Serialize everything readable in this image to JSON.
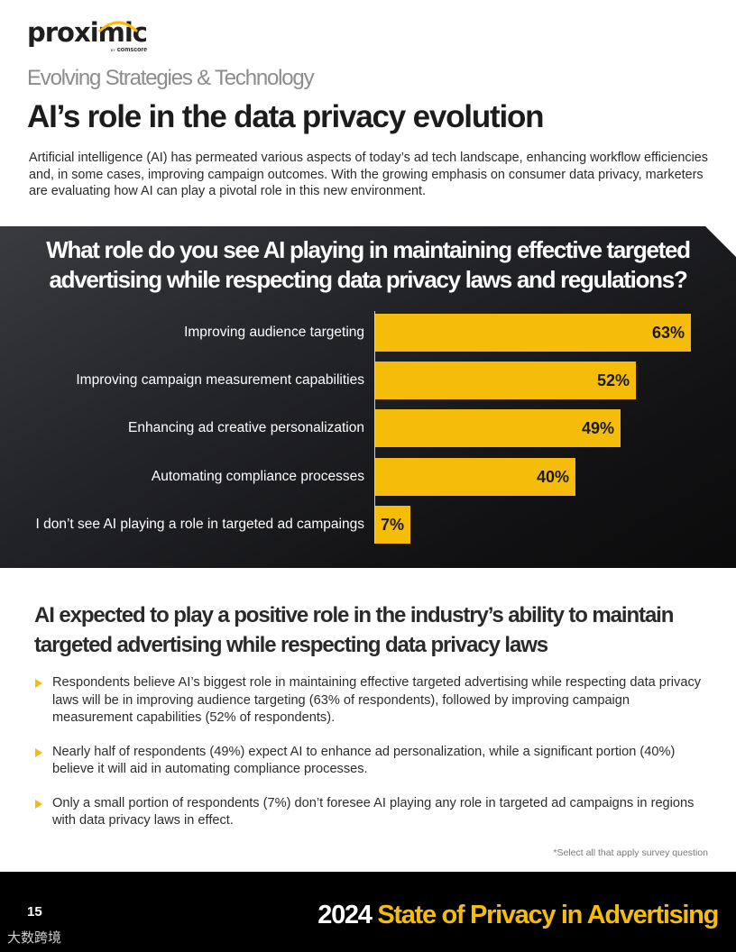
{
  "header": {
    "logo_text": "proximic",
    "logo_by": "BY",
    "logo_company": "comscore",
    "subtitle": "Evolving Strategies & Technology",
    "title": "AI’s role in the data privacy evolution",
    "intro": "Artificial intelligence (AI) has permeated various aspects of today’s ad tech landscape, enhancing workflow efficiencies and, in some cases, improving campaign outcomes. With the growing emphasis on consumer data privacy, marketers are evaluating how AI can play a pivotal role in this new environment."
  },
  "chart_data": {
    "type": "bar",
    "orientation": "horizontal",
    "title": "What role do you see AI playing in maintaining effective targeted advertising while respecting data privacy laws and regulations?",
    "categories": [
      "Improving audience targeting",
      "Improving campaign measurement capabilities",
      "Enhancing ad creative personalization",
      "Automating compliance processes",
      "I don’t see AI playing a role in targeted ad campaings"
    ],
    "values": [
      63,
      52,
      49,
      40,
      7
    ],
    "value_labels": [
      "63%",
      "52%",
      "49%",
      "40%",
      "7%"
    ],
    "unit": "%",
    "xlim": [
      0,
      63
    ],
    "bar_color": "#f5bd0a",
    "grid": false,
    "legend": "none"
  },
  "section": {
    "heading": "AI expected to play a positive role in the industry’s ability to maintain targeted advertising while respecting data privacy laws",
    "bullets": [
      "Respondents believe AI’s biggest role in maintaining effective targeted advertising while respecting data privacy laws will be in improving audience targeting (63% of respondents), followed by improving campaign measurement capabilities (52% of respondents).",
      "Nearly half of respondents (49%) expect AI to enhance ad personalization, while a significant portion (40%) believe it will aid in automating compliance processes.",
      "Only a small portion of respondents (7%) don’t foresee AI playing any role in targeted ad campaigns in regions with data privacy laws in effect."
    ],
    "footnote": "*Select all that apply survey question"
  },
  "footer": {
    "page_number": "15",
    "year": "2024",
    "report_title": "State of Privacy in Advertising",
    "watermark": "大数跨境"
  },
  "colors": {
    "accent": "#f5bd0a",
    "panel_dark": "#1a1b1e",
    "text_dark": "#1c1c1c",
    "subtitle_gray": "#8c8c8c"
  }
}
